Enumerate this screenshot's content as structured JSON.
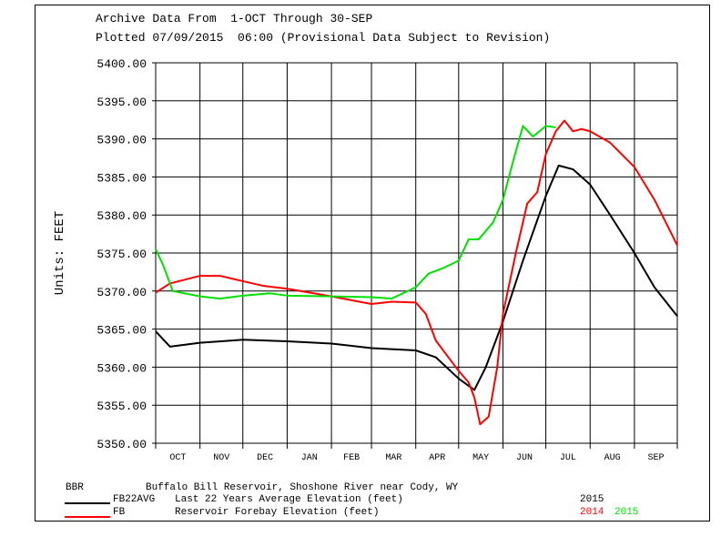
{
  "chart_data": {
    "type": "line",
    "title": "Archive Data From  1-OCT Through 30-SEP",
    "subtitle": "Plotted 07/09/2015  06:00 (Provisional Data Subject to Revision)",
    "ylabel": "Units:  FEET",
    "ylim": [
      5350,
      5400
    ],
    "yticks": [
      "5400.00",
      "5395.00",
      "5390.00",
      "5385.00",
      "5380.00",
      "5375.00",
      "5370.00",
      "5365.00",
      "5360.00",
      "5355.00",
      "5350.00"
    ],
    "x_unit": "day of water year (0 = 1-OCT)",
    "xlim": [
      0,
      365
    ],
    "months": [
      "OCT",
      "NOV",
      "DEC",
      "JAN",
      "FEB",
      "MAR",
      "APR",
      "MAY",
      "JUN",
      "JUL",
      "AUG",
      "SEP"
    ],
    "month_start_days": [
      0,
      31,
      61,
      92,
      123,
      151,
      182,
      212,
      243,
      273,
      304,
      335,
      365
    ],
    "grid": true,
    "series": [
      {
        "name": "FB22AVG",
        "color": "#000000",
        "x": [
          0,
          10,
          31,
          61,
          92,
          123,
          151,
          182,
          196,
          212,
          223,
          231,
          243,
          257,
          273,
          282,
          292,
          304,
          318,
          335,
          349,
          365
        ],
        "y": [
          5364.7,
          5362.7,
          5363.2,
          5363.6,
          5363.4,
          5363.1,
          5362.5,
          5362.2,
          5361.3,
          5358.5,
          5357.0,
          5360,
          5366,
          5374,
          5382.5,
          5386.5,
          5386,
          5384,
          5380,
          5375,
          5370.5,
          5366.7
        ]
      },
      {
        "name": "FB 2014",
        "color": "#ff0000",
        "x": [
          0,
          10,
          31,
          45,
          61,
          75,
          92,
          123,
          137,
          151,
          165,
          182,
          189,
          196,
          206,
          212,
          219,
          223,
          227,
          233,
          239,
          243,
          252,
          260,
          267,
          273,
          280,
          286,
          292,
          298,
          304,
          318,
          335,
          349,
          365
        ],
        "y": [
          5369.8,
          5371,
          5372,
          5372,
          5371.3,
          5370.7,
          5370.3,
          5369.3,
          5368.8,
          5368.3,
          5368.6,
          5368.5,
          5367,
          5363.5,
          5361,
          5359.5,
          5358,
          5356,
          5352.5,
          5353.5,
          5360,
          5367,
          5375,
          5381.5,
          5383,
          5388,
          5391,
          5392.4,
          5391,
          5391.3,
          5391,
          5389.5,
          5386.3,
          5382,
          5376
        ]
      },
      {
        "name": "FB 2015",
        "color": "#00e000",
        "x": [
          0,
          5,
          12,
          31,
          45,
          61,
          80,
          92,
          123,
          151,
          165,
          182,
          191,
          201,
          212,
          219,
          226,
          236,
          243,
          250,
          257,
          264,
          273,
          280
        ],
        "y": [
          5375.5,
          5373.5,
          5370,
          5369.3,
          5369,
          5369.4,
          5369.7,
          5369.4,
          5369.3,
          5369.2,
          5369,
          5370.5,
          5372.3,
          5373,
          5374,
          5376.8,
          5376.8,
          5379,
          5382,
          5387,
          5391.7,
          5390.3,
          5391.7,
          5391.5
        ]
      }
    ]
  },
  "legend": {
    "site_code": "BBR",
    "site_name": "Buffalo Bill Reservoir, Shoshone River near Cody, WY",
    "rows": [
      {
        "code": "FB22AVG",
        "desc": "Last 22 Years Average Elevation (feet)",
        "year1": "2015",
        "year2": ""
      },
      {
        "code": "FB",
        "desc": "Reservoir Forebay Elevation (feet)",
        "year1": "2014",
        "year2": "2015"
      }
    ],
    "colors": {
      "avg": "#000000",
      "y2014": "#ff0000",
      "y2015": "#00e000"
    }
  }
}
